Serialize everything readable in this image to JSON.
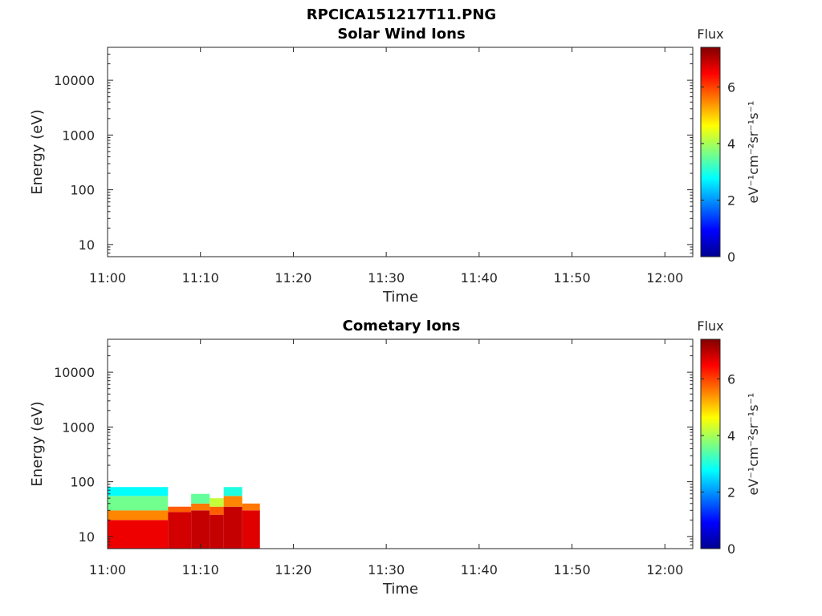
{
  "figure_title": "RPCICA151217T11.PNG",
  "chart_data": [
    {
      "type": "heatmap",
      "title": "Solar Wind Ions",
      "xlabel": "Time",
      "ylabel": "Energy (eV)",
      "x_ticks": [
        "11:00",
        "11:10",
        "11:20",
        "11:30",
        "11:40",
        "11:50",
        "12:00"
      ],
      "x_range_minutes": [
        0,
        63
      ],
      "y_scale": "log",
      "y_ticks": [
        10,
        100,
        1000,
        10000
      ],
      "y_tick_labels": [
        "10",
        "100",
        "1000",
        "10000"
      ],
      "ylim": [
        6,
        40000
      ],
      "colorbar": {
        "label_top": "Flux",
        "label_side": "eV⁻¹cm⁻²sr⁻¹s⁻¹",
        "ticks": [
          0,
          2,
          4,
          6
        ],
        "range": [
          0,
          7.4
        ],
        "colormap": "jet"
      },
      "blocks": []
    },
    {
      "type": "heatmap",
      "title": "Cometary Ions",
      "xlabel": "Time",
      "ylabel": "Energy (eV)",
      "x_ticks": [
        "11:00",
        "11:10",
        "11:20",
        "11:30",
        "11:40",
        "11:50",
        "12:00"
      ],
      "x_range_minutes": [
        0,
        63
      ],
      "y_scale": "log",
      "y_ticks": [
        10,
        100,
        1000,
        10000
      ],
      "y_tick_labels": [
        "10",
        "100",
        "1000",
        "10000"
      ],
      "ylim": [
        6,
        40000
      ],
      "colorbar": {
        "label_top": "Flux",
        "label_side": "eV⁻¹cm⁻²sr⁻¹s⁻¹",
        "ticks": [
          0,
          2,
          4,
          6
        ],
        "range": [
          0,
          7.4
        ],
        "colormap": "jet"
      },
      "blocks": [
        {
          "t": [
            0.0,
            6.5
          ],
          "e": [
            6,
            20
          ],
          "v": 6.6
        },
        {
          "t": [
            0.0,
            6.5
          ],
          "e": [
            20,
            30
          ],
          "v": 5.5
        },
        {
          "t": [
            0.0,
            6.5
          ],
          "e": [
            30,
            55
          ],
          "v": 3.6
        },
        {
          "t": [
            0.0,
            6.5
          ],
          "e": [
            55,
            80
          ],
          "v": 2.8
        },
        {
          "t": [
            6.5,
            9.0
          ],
          "e": [
            6,
            28
          ],
          "v": 6.8
        },
        {
          "t": [
            6.5,
            9.0
          ],
          "e": [
            28,
            35
          ],
          "v": 5.8
        },
        {
          "t": [
            9.0,
            11.0
          ],
          "e": [
            6,
            30
          ],
          "v": 6.9
        },
        {
          "t": [
            9.0,
            11.0
          ],
          "e": [
            30,
            40
          ],
          "v": 5.6
        },
        {
          "t": [
            9.0,
            11.0
          ],
          "e": [
            40,
            60
          ],
          "v": 3.5
        },
        {
          "t": [
            11.0,
            12.5
          ],
          "e": [
            6,
            25
          ],
          "v": 6.9
        },
        {
          "t": [
            11.0,
            12.5
          ],
          "e": [
            25,
            35
          ],
          "v": 5.8
        },
        {
          "t": [
            11.0,
            12.5
          ],
          "e": [
            35,
            50
          ],
          "v": 4.2
        },
        {
          "t": [
            12.5,
            14.5
          ],
          "e": [
            6,
            35
          ],
          "v": 6.9
        },
        {
          "t": [
            12.5,
            14.5
          ],
          "e": [
            35,
            55
          ],
          "v": 5.5
        },
        {
          "t": [
            12.5,
            14.5
          ],
          "e": [
            55,
            80
          ],
          "v": 3.0
        },
        {
          "t": [
            14.5,
            16.4
          ],
          "e": [
            6,
            30
          ],
          "v": 6.7
        },
        {
          "t": [
            14.5,
            16.4
          ],
          "e": [
            30,
            40
          ],
          "v": 5.6
        }
      ]
    }
  ]
}
